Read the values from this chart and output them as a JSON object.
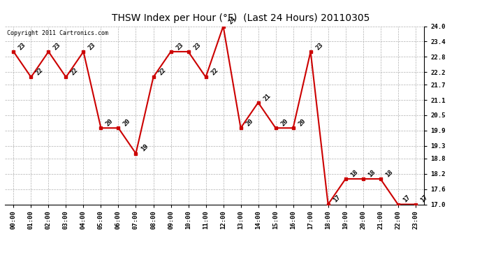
{
  "title": "THSW Index per Hour (°F)  (Last 24 Hours) 20110305",
  "copyright": "Copyright 2011 Cartronics.com",
  "hours": [
    "00:00",
    "01:00",
    "02:00",
    "03:00",
    "04:00",
    "05:00",
    "06:00",
    "07:00",
    "08:00",
    "09:00",
    "10:00",
    "11:00",
    "12:00",
    "13:00",
    "14:00",
    "15:00",
    "16:00",
    "17:00",
    "18:00",
    "19:00",
    "20:00",
    "21:00",
    "22:00",
    "23:00"
  ],
  "values": [
    23,
    22,
    23,
    22,
    23,
    20,
    20,
    19,
    22,
    23,
    23,
    22,
    24,
    20,
    21,
    20,
    20,
    23,
    17,
    18,
    18,
    18,
    17,
    17
  ],
  "line_color": "#cc0000",
  "marker_color": "#cc0000",
  "bg_color": "#ffffff",
  "grid_color": "#b0b0b0",
  "ylim_min": 17.0,
  "ylim_max": 24.0,
  "yticks": [
    17.0,
    17.6,
    18.2,
    18.8,
    19.3,
    19.9,
    20.5,
    21.1,
    21.7,
    22.2,
    22.8,
    23.4,
    24.0
  ],
  "title_fontsize": 10,
  "label_fontsize": 6.5,
  "copyright_fontsize": 6,
  "annot_fontsize": 6.5
}
